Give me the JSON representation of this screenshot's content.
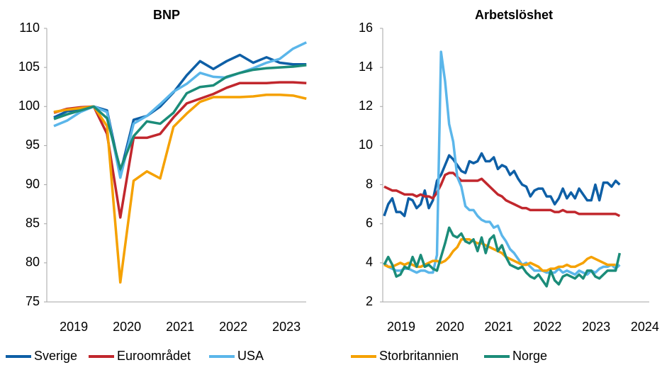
{
  "chart_data": [
    {
      "type": "line",
      "title": "BNP",
      "categories": [
        null,
        "2019",
        null,
        null,
        null,
        "2020",
        null,
        null,
        null,
        "2021",
        null,
        null,
        null,
        "2022",
        null,
        null,
        null,
        "2023",
        null,
        null
      ],
      "ylim": [
        75,
        110
      ],
      "yticks": [
        75,
        80,
        85,
        90,
        95,
        100,
        105,
        110
      ],
      "legend": "bottom",
      "series": [
        {
          "name": "Sverige",
          "color": "#0e5fa6",
          "values": [
            98.6,
            99.4,
            99.6,
            100,
            99.5,
            91.5,
            98.3,
            98.8,
            100,
            101.8,
            104,
            105.8,
            104.8,
            105.8,
            106.6,
            105.6,
            106.3,
            105.6,
            105.4,
            105.4
          ]
        },
        {
          "name": "Euroområdet",
          "color": "#c1272d",
          "values": [
            99.2,
            99.7,
            99.9,
            100,
            96.5,
            85.8,
            96,
            96,
            96.5,
            98.6,
            100.4,
            101,
            101.6,
            102.4,
            103,
            103,
            103,
            103.1,
            103.1,
            103
          ]
        },
        {
          "name": "USA",
          "color": "#5bb6ea",
          "values": [
            97.5,
            98.2,
            99.3,
            100,
            99.3,
            90.9,
            97.8,
            98.8,
            100.3,
            101.9,
            102.9,
            104.3,
            103.8,
            103.7,
            104.3,
            104.9,
            105.6,
            106.1,
            107.4,
            108.2
          ]
        },
        {
          "name": "Storbritannien",
          "color": "#f5a100",
          "values": [
            99.3,
            99.6,
            99.8,
            100,
            97.5,
            77.5,
            90.5,
            91.7,
            90.8,
            97.4,
            99.1,
            100.6,
            101.2,
            101.2,
            101.2,
            101.3,
            101.5,
            101.5,
            101.4,
            101
          ]
        },
        {
          "name": "Norge",
          "color": "#1b8c79",
          "values": [
            98.4,
            99,
            99.5,
            100,
            98.5,
            92,
            96.2,
            98.1,
            97.8,
            99.2,
            101.7,
            102.5,
            102.7,
            103.8,
            104.3,
            104.7,
            104.9,
            105,
            105.1,
            105.3
          ]
        }
      ]
    },
    {
      "type": "line",
      "title": "Arbetslöshet",
      "categories": [
        null,
        null,
        null,
        null,
        null,
        "2019",
        null,
        null,
        null,
        null,
        null,
        null,
        null,
        null,
        null,
        null,
        null,
        "2020",
        null,
        null,
        null,
        null,
        null,
        null,
        null,
        null,
        null,
        null,
        null,
        "2021",
        null,
        null,
        null,
        null,
        null,
        null,
        null,
        null,
        null,
        null,
        null,
        "2022",
        null,
        null,
        null,
        null,
        null,
        null,
        null,
        null,
        null,
        null,
        null,
        "2023",
        null,
        null,
        null,
        null,
        null,
        null,
        null,
        null,
        null,
        null,
        null,
        "2024"
      ],
      "ylim": [
        2,
        16
      ],
      "yticks": [
        2,
        4,
        6,
        8,
        10,
        12,
        14,
        16
      ],
      "series": [
        {
          "name": "Sverige",
          "color": "#0e5fa6",
          "values": [
            6.4,
            7.0,
            7.3,
            6.6,
            6.6,
            6.4,
            7.3,
            7.2,
            6.8,
            7.0,
            7.7,
            6.8,
            7.2,
            8.2,
            8.5,
            9.0,
            9.5,
            9.3,
            9.0,
            8.7,
            8.6,
            9.2,
            9.1,
            9.2,
            9.6,
            9.2,
            9.2,
            9.4,
            8.8,
            9.0,
            8.9,
            8.5,
            8.7,
            8.3,
            8.0,
            7.9,
            7.4,
            7.7,
            7.8,
            7.8,
            7.4,
            7.4,
            7.0,
            7.3,
            7.8,
            7.3,
            7.6,
            7.3,
            7.8,
            7.5,
            7.2,
            7.2,
            8.0,
            7.2,
            8.1,
            8.1,
            7.9,
            8.2,
            8.0,
            null,
            null,
            null,
            null,
            null,
            null,
            null
          ]
        },
        {
          "name": "Euroområdet",
          "color": "#c1272d",
          "values": [
            7.9,
            7.8,
            7.7,
            7.7,
            7.6,
            7.5,
            7.5,
            7.5,
            7.4,
            7.5,
            7.4,
            7.4,
            7.3,
            7.6,
            8.0,
            8.5,
            8.6,
            8.6,
            8.4,
            8.2,
            8.2,
            8.2,
            8.2,
            8.2,
            8.3,
            8.1,
            7.9,
            7.7,
            7.5,
            7.4,
            7.2,
            7.1,
            7.0,
            6.9,
            6.8,
            6.8,
            6.7,
            6.7,
            6.7,
            6.7,
            6.7,
            6.7,
            6.6,
            6.6,
            6.7,
            6.6,
            6.6,
            6.6,
            6.5,
            6.5,
            6.5,
            6.5,
            6.5,
            6.5,
            6.5,
            6.5,
            6.5,
            6.5,
            6.4,
            null,
            null,
            null,
            null,
            null,
            null,
            null
          ]
        },
        {
          "name": "USA",
          "color": "#5bb6ea",
          "values": [
            4.0,
            3.8,
            3.7,
            3.6,
            3.6,
            3.7,
            3.7,
            3.6,
            3.5,
            3.6,
            3.6,
            3.5,
            3.5,
            4.4,
            14.8,
            13.3,
            11.1,
            10.2,
            8.4,
            7.9,
            6.9,
            6.7,
            6.7,
            6.4,
            6.2,
            6.1,
            6.1,
            5.8,
            5.9,
            5.4,
            5.1,
            4.7,
            4.5,
            4.2,
            3.9,
            4.0,
            3.8,
            3.6,
            3.6,
            3.6,
            3.5,
            3.5,
            3.5,
            3.7,
            3.5,
            3.6,
            3.5,
            3.4,
            3.6,
            3.5,
            3.4,
            3.6,
            3.5,
            3.7,
            3.8,
            3.8,
            3.9,
            3.7,
            3.9,
            null,
            null,
            null,
            null,
            null,
            null,
            null
          ]
        },
        {
          "name": "Storbritannien",
          "color": "#f5a100",
          "values": [
            3.9,
            3.8,
            3.8,
            3.9,
            4.0,
            3.9,
            4.0,
            3.9,
            3.8,
            3.8,
            3.9,
            4.0,
            4.1,
            4.1,
            4.0,
            4.1,
            4.3,
            4.6,
            4.8,
            5.2,
            5.2,
            5.2,
            5.1,
            5.0,
            5.0,
            4.9,
            4.8,
            4.7,
            4.6,
            4.5,
            4.3,
            4.2,
            4.1,
            4.0,
            3.9,
            3.9,
            4.0,
            3.9,
            3.8,
            3.6,
            3.6,
            3.7,
            3.7,
            3.8,
            3.8,
            3.9,
            3.8,
            3.8,
            3.9,
            4.0,
            4.2,
            4.3,
            4.2,
            4.1,
            4.0,
            3.9,
            3.9,
            3.9,
            null,
            null,
            null,
            null,
            null,
            null,
            null,
            null
          ]
        },
        {
          "name": "Norge",
          "color": "#1b8c79",
          "values": [
            3.9,
            4.3,
            3.9,
            3.3,
            3.4,
            3.8,
            3.7,
            4.3,
            3.8,
            4.4,
            3.8,
            3.9,
            3.7,
            3.6,
            4.3,
            5.0,
            5.8,
            5.4,
            5.3,
            5.5,
            5.1,
            5.0,
            5.2,
            4.6,
            5.3,
            4.5,
            5.2,
            5.4,
            4.6,
            4.9,
            4.3,
            3.9,
            3.8,
            3.7,
            3.8,
            3.5,
            3.3,
            3.2,
            3.4,
            3.1,
            2.8,
            3.6,
            3.1,
            2.9,
            3.3,
            3.4,
            3.3,
            3.2,
            3.4,
            3.2,
            3.6,
            3.6,
            3.3,
            3.2,
            3.4,
            3.6,
            3.6,
            3.6,
            4.5,
            null,
            null,
            null,
            null,
            null,
            null,
            null
          ]
        }
      ]
    }
  ]
}
